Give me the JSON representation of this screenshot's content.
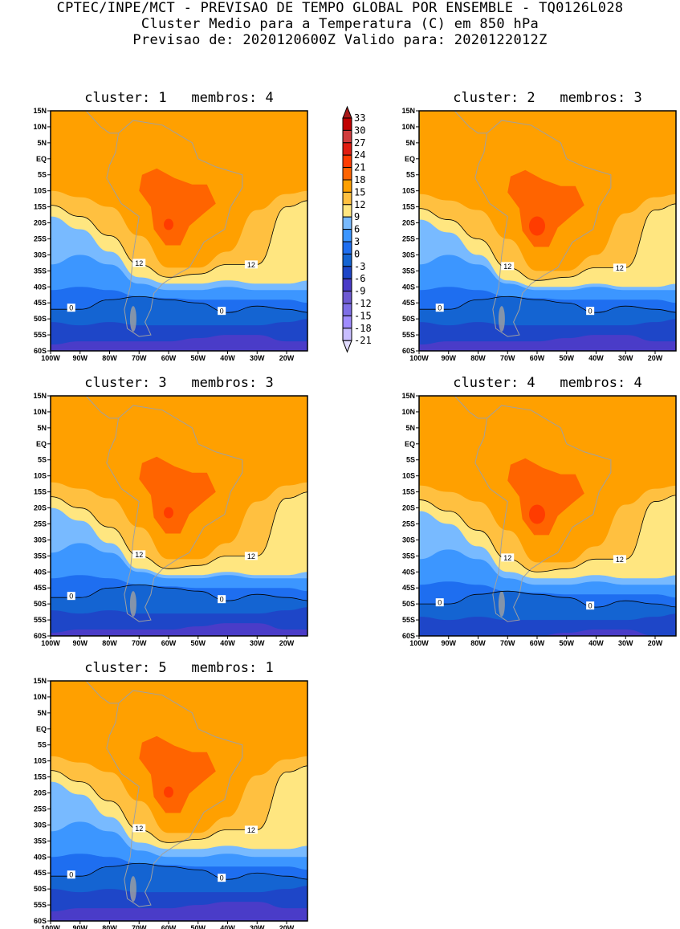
{
  "header": {
    "line1": "CPTEC/INPE/MCT - PREVISAO DE TEMPO GLOBAL POR ENSEMBLE - TQ0126L028",
    "line2": "Cluster Medio para a Temperatura (C) em 850 hPa",
    "line3": "Previsao de: 2020120600Z   Valido para: 2020122012Z"
  },
  "panels": [
    {
      "title": "cluster: 1   membros: 4"
    },
    {
      "title": "cluster: 2   membros: 3"
    },
    {
      "title": "cluster: 3   membros: 3"
    },
    {
      "title": "cluster: 4   membros: 4"
    },
    {
      "title": "cluster: 5   membros: 1"
    }
  ],
  "axes": {
    "lat_ticks": [
      "15N",
      "10N",
      "5N",
      "EQ",
      "5S",
      "10S",
      "15S",
      "20S",
      "25S",
      "30S",
      "35S",
      "40S",
      "45S",
      "50S",
      "55S",
      "60S"
    ],
    "lon_ticks": [
      "100W",
      "90W",
      "80W",
      "70W",
      "60W",
      "50W",
      "40W",
      "30W",
      "20W"
    ]
  },
  "contour_labels": {
    "warm": "12",
    "cold": "0"
  },
  "colorbar": {
    "labels": [
      "33",
      "30",
      "27",
      "24",
      "21",
      "18",
      "15",
      "12",
      "9",
      "6",
      "3",
      "0",
      "-3",
      "-6",
      "-9",
      "-12",
      "-15",
      "-18",
      "-21"
    ],
    "colors": [
      "#a81818",
      "#c00000",
      "#d03c3c",
      "#e01c10",
      "#ff3c00",
      "#ff6400",
      "#ffa000",
      "#ffc040",
      "#ffe680",
      "#78baff",
      "#3c96ff",
      "#1e6ef0",
      "#1464d2",
      "#1e46c8",
      "#4a3cc8",
      "#6e5ad2",
      "#7e6ee6",
      "#a08cff",
      "#c8beff",
      "#e1dcff"
    ]
  }
}
